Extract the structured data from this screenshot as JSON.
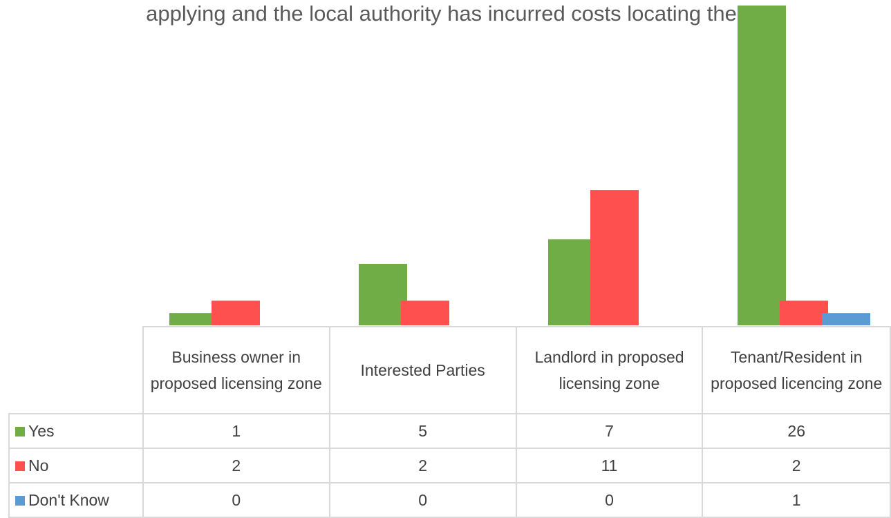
{
  "chart_data": {
    "type": "bar",
    "title": "applying and the local authority has incurred costs locating them?",
    "categories": [
      "Business owner in proposed licensing zone",
      "Interested Parties",
      "Landlord in proposed licensing zone",
      "Tenant/Resident in proposed licencing zone"
    ],
    "series": [
      {
        "name": "Yes",
        "color": "#70ad47",
        "values": [
          1,
          5,
          7,
          26
        ]
      },
      {
        "name": "No",
        "color": "#ff5050",
        "values": [
          2,
          2,
          11,
          2
        ]
      },
      {
        "name": "Don't Know",
        "color": "#5b9bd5",
        "values": [
          0,
          0,
          0,
          1
        ]
      }
    ],
    "ylim": [
      0,
      26
    ]
  }
}
